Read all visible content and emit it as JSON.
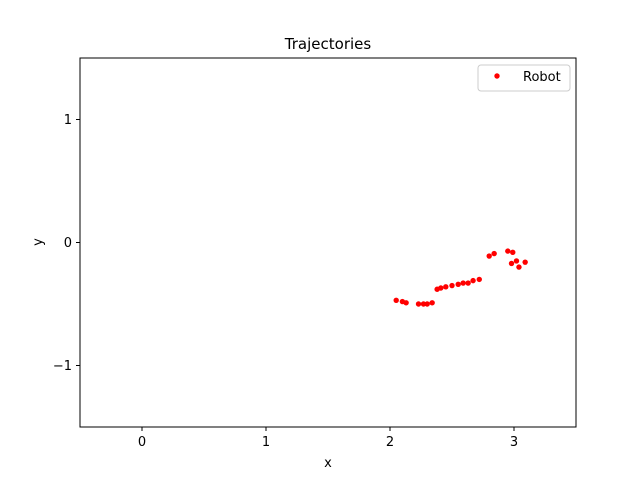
{
  "chart_data": {
    "type": "scatter",
    "title": "Trajectories",
    "xlabel": "x",
    "ylabel": "y",
    "xlim": [
      -0.5,
      3.5
    ],
    "ylim": [
      -1.5,
      1.5
    ],
    "xticks": [
      0,
      1,
      2,
      3
    ],
    "yticks": [
      -1,
      0,
      1
    ],
    "xtick_labels": [
      "0",
      "1",
      "2",
      "3"
    ],
    "ytick_labels": [
      "−1",
      "0",
      "1"
    ],
    "grid": false,
    "legend_position": "top-right",
    "series": [
      {
        "name": "Robot",
        "color": "#ff0000",
        "marker": "circle",
        "points": [
          [
            2.05,
            -0.47
          ],
          [
            2.1,
            -0.48
          ],
          [
            2.13,
            -0.49
          ],
          [
            2.23,
            -0.5
          ],
          [
            2.27,
            -0.5
          ],
          [
            2.3,
            -0.5
          ],
          [
            2.34,
            -0.49
          ],
          [
            2.38,
            -0.38
          ],
          [
            2.41,
            -0.37
          ],
          [
            2.45,
            -0.36
          ],
          [
            2.5,
            -0.35
          ],
          [
            2.55,
            -0.34
          ],
          [
            2.59,
            -0.33
          ],
          [
            2.63,
            -0.33
          ],
          [
            2.67,
            -0.31
          ],
          [
            2.72,
            -0.3
          ],
          [
            2.8,
            -0.11
          ],
          [
            2.84,
            -0.09
          ],
          [
            2.95,
            -0.07
          ],
          [
            2.99,
            -0.08
          ],
          [
            2.98,
            -0.17
          ],
          [
            3.02,
            -0.15
          ],
          [
            3.04,
            -0.2
          ],
          [
            3.09,
            -0.16
          ]
        ]
      }
    ]
  }
}
